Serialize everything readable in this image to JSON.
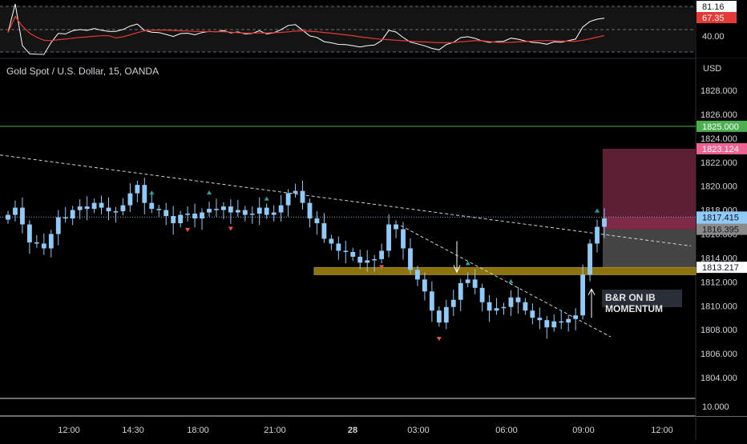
{
  "header": {
    "symbol_title": "Gold Spot / U.S. Dollar, 15, OANDA",
    "currency": "USD"
  },
  "annotation": {
    "line1": "B&R ON IB",
    "line2": "MOMENTUM"
  },
  "indicator_pane": {
    "labels": [
      {
        "value": "81.16",
        "style": "white"
      },
      {
        "value": "67.35",
        "style": "red"
      },
      {
        "value": "40.00",
        "style": "plain"
      }
    ]
  },
  "price_axis": {
    "ticks": [
      "1828.000",
      "1826.000",
      "1824.000",
      "1822.000",
      "1820.000",
      "1818.000",
      "1816.000",
      "1814.000",
      "1812.000",
      "1810.000",
      "1808.000",
      "1806.000",
      "1804.000"
    ],
    "badges": [
      {
        "value": "1825.000",
        "color": "#4caf50"
      },
      {
        "value": "1823.124",
        "color": "#f06292"
      },
      {
        "value": "1817.415",
        "sub": "08:09",
        "color": "#90caf9"
      },
      {
        "value": "1816.395",
        "color": "#8a8a8a"
      },
      {
        "value": "1813.217",
        "color": "#ffffff"
      }
    ],
    "volume_label": "10.000"
  },
  "time_axis": {
    "ticks": [
      {
        "label": "12:00",
        "bold": false
      },
      {
        "label": "14:30",
        "bold": false
      },
      {
        "label": "18:00",
        "bold": false
      },
      {
        "label": "21:00",
        "bold": false
      },
      {
        "label": "28",
        "bold": true
      },
      {
        "label": "03:00",
        "bold": false
      },
      {
        "label": "06:00",
        "bold": false
      },
      {
        "label": "09:00",
        "bold": false
      },
      {
        "label": "12:00",
        "bold": false
      }
    ]
  },
  "colors": {
    "background": "#000000",
    "candle": "#90caf9",
    "support_zone": "#c8a415",
    "stop_zone": "#7b2a45",
    "target_zone": "#555555",
    "resistance_line": "#4caf50",
    "rsi_line": "#ffffff",
    "rsi_ma_line": "#e53935",
    "signal_up": "#26a69a",
    "signal_down": "#ef5350"
  },
  "chart_data": {
    "type": "candlestick",
    "interval": "15",
    "price_range": [
      1802,
      1830
    ],
    "levels": {
      "resistance": 1825.0,
      "stop": 1823.124,
      "last": 1817.415,
      "target": 1816.395,
      "support": 1813.217
    },
    "series": [
      {
        "name": "",
        "values": [
          1817.6,
          1818.2,
          1816.8,
          1815.3,
          1815.2,
          1814.8,
          1816.0,
          1817.4,
          1817.3,
          1818.0,
          1818.3,
          1818.1,
          1818.6,
          1818.2,
          1817.9,
          1817.9,
          1818.4,
          1819.4,
          1820.1,
          1818.6,
          1818.1,
          1818.0,
          1817.5,
          1816.9,
          1817.6,
          1817.7,
          1817.3,
          1817.8,
          1818.1,
          1818.0,
          1818.3,
          1817.8,
          1818.0,
          1817.6,
          1817.7,
          1818.2,
          1817.6,
          1817.8,
          1818.4,
          1819.4,
          1819.6,
          1818.6,
          1817.3,
          1816.9,
          1815.6,
          1815.2,
          1814.6,
          1814.5,
          1814.1,
          1813.6,
          1813.8,
          1813.9,
          1814.6,
          1816.8,
          1816.4,
          1814.8,
          1813.0,
          1812.2,
          1811.2,
          1809.6,
          1808.6,
          1809.9,
          1810.5,
          1811.9,
          1812.2,
          1811.5,
          1810.3,
          1809.6,
          1809.8,
          1809.9,
          1810.7,
          1810.3,
          1809.6,
          1809.0,
          1808.8,
          1808.2,
          1808.7,
          1808.6,
          1808.9,
          1809.2,
          1812.6,
          1815.2,
          1816.6,
          1817.3
        ]
      }
    ]
  }
}
